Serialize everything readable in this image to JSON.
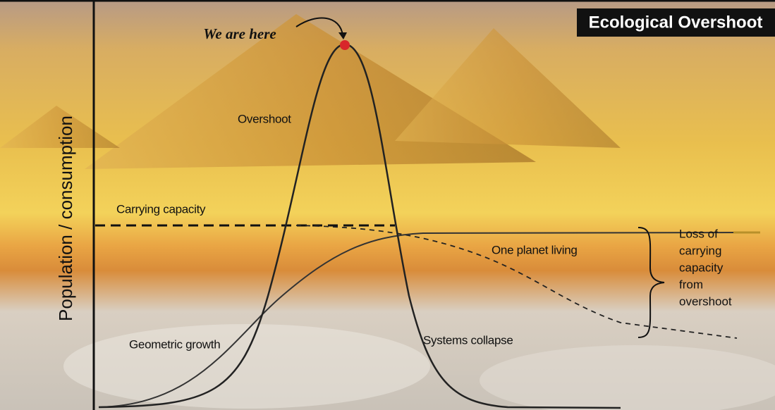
{
  "title": "Ecological Overshoot",
  "y_axis_label": "Population / consumption",
  "annotations": {
    "we_are_here": "We are here",
    "overshoot": "Overshoot",
    "carrying_capacity": "Carrying capacity",
    "one_planet_living": "One planet living",
    "geometric_growth": "Geometric growth",
    "systems_collapse": "Systems collapse",
    "loss_of_capacity": [
      "Loss of",
      "carrying",
      "capacity",
      "from",
      "overshoot"
    ]
  }
}
